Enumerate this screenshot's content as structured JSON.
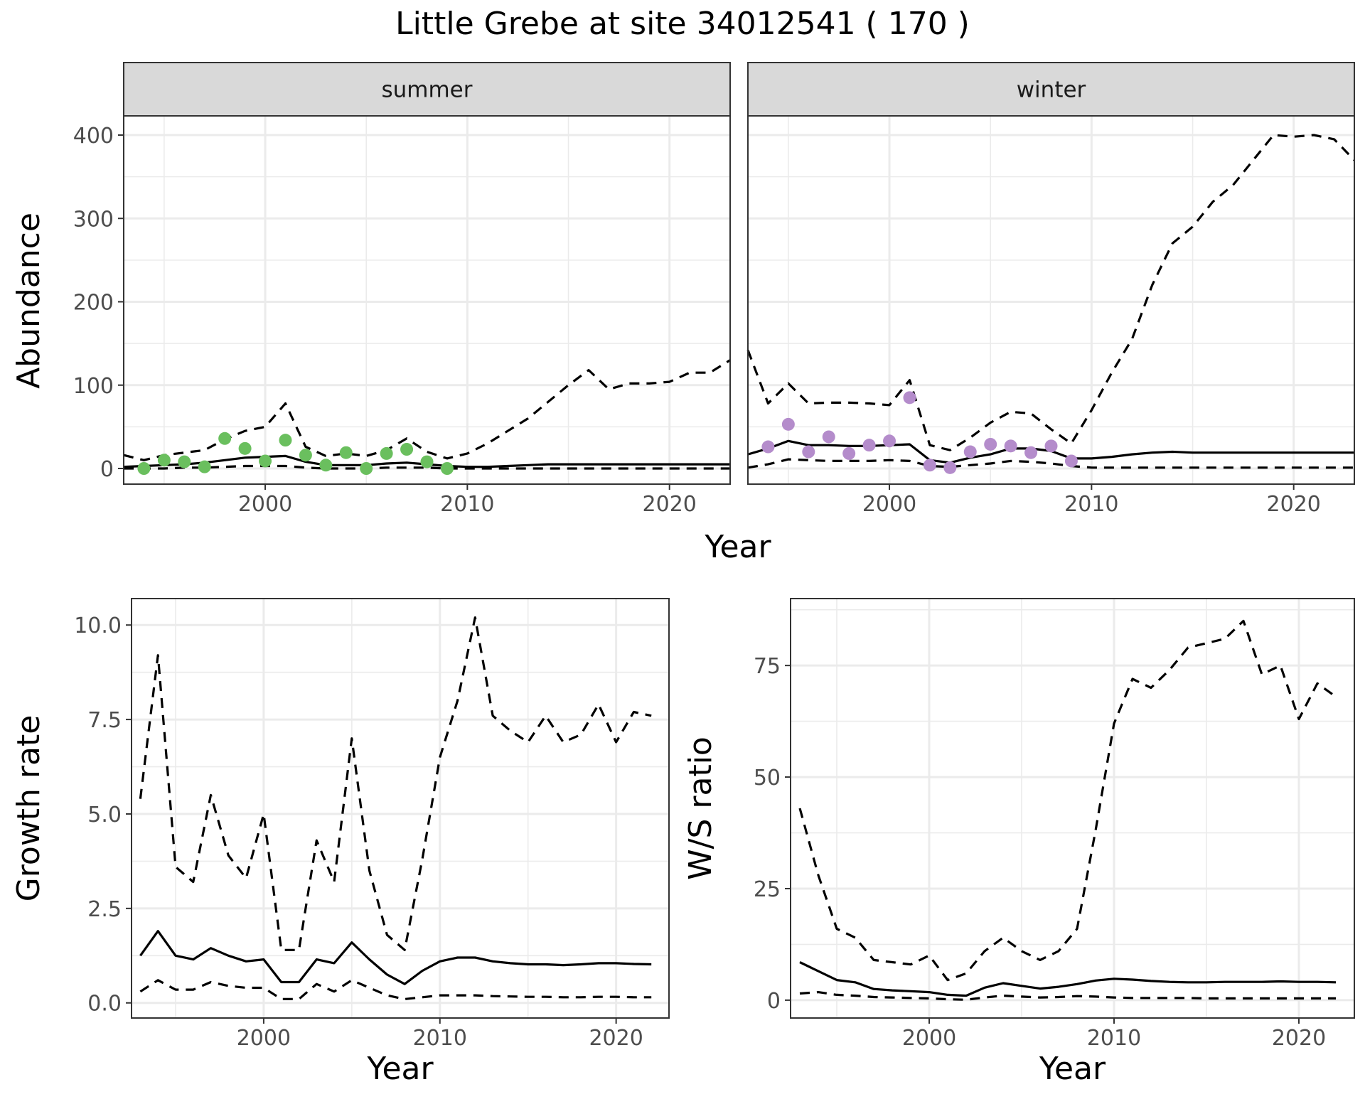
{
  "title": "Little Grebe at site 34012541 ( 170 )",
  "colors": {
    "summer_points": "#6ABF5E",
    "winter_points": "#B48CCB",
    "strip_fill": "#D9D9D9",
    "grid": "#EBEBEB",
    "frame": "#333333",
    "line": "#000000"
  },
  "chart_data": [
    {
      "type": "line",
      "panel": "summer",
      "strip_label": "summer",
      "xlabel": "Year",
      "ylabel": "Abundance",
      "xlim": [
        1993,
        2023
      ],
      "ylim": [
        0,
        400
      ],
      "x_ticks": [
        2000,
        2010,
        2020
      ],
      "y_ticks": [
        0,
        100,
        200,
        300,
        400
      ],
      "grid": true,
      "series": [
        {
          "role": "estimate",
          "style": "solid",
          "x": [
            1993,
            1994,
            1995,
            1996,
            1997,
            1998,
            1999,
            2000,
            2001,
            2002,
            2003,
            2004,
            2005,
            2006,
            2007,
            2008,
            2009,
            2010,
            2011,
            2012,
            2013,
            2014,
            2015,
            2016,
            2017,
            2018,
            2019,
            2020,
            2021,
            2022,
            2023
          ],
          "y": [
            2,
            3,
            4,
            5,
            7,
            10,
            13,
            14,
            15,
            8,
            4,
            4,
            4,
            6,
            7,
            5,
            3,
            2,
            2,
            3,
            4,
            5,
            5,
            5,
            5,
            5,
            5,
            5,
            5,
            5,
            5
          ]
        },
        {
          "role": "upper",
          "style": "dashed",
          "x": [
            1993,
            1994,
            1995,
            1996,
            1997,
            1998,
            1999,
            2000,
            2001,
            2002,
            2003,
            2004,
            2005,
            2006,
            2007,
            2008,
            2009,
            2010,
            2011,
            2012,
            2013,
            2014,
            2015,
            2016,
            2017,
            2018,
            2019,
            2020,
            2021,
            2022,
            2023
          ],
          "y": [
            16,
            10,
            16,
            19,
            22,
            35,
            45,
            50,
            78,
            26,
            15,
            18,
            15,
            22,
            36,
            20,
            12,
            18,
            30,
            45,
            60,
            80,
            100,
            118,
            95,
            102,
            102,
            104,
            115,
            115,
            130
          ]
        },
        {
          "role": "lower",
          "style": "dashed",
          "x": [
            1993,
            1994,
            1995,
            1996,
            1997,
            1998,
            1999,
            2000,
            2001,
            2002,
            2003,
            2004,
            2005,
            2006,
            2007,
            2008,
            2009,
            2010,
            2011,
            2012,
            2013,
            2014,
            2015,
            2016,
            2017,
            2018,
            2019,
            2020,
            2021,
            2022,
            2023
          ],
          "y": [
            0,
            0,
            0,
            1,
            1,
            2,
            3,
            3,
            3,
            1,
            0,
            0,
            0,
            1,
            1,
            1,
            0,
            0,
            0,
            0,
            0,
            0,
            0,
            0,
            0,
            0,
            0,
            0,
            0,
            0,
            0
          ]
        }
      ],
      "points": {
        "x": [
          1994,
          1995,
          1996,
          1997,
          1998,
          1999,
          2000,
          2001,
          2002,
          2003,
          2004,
          2005,
          2006,
          2007,
          2008,
          2009
        ],
        "y": [
          0,
          10,
          8,
          2,
          36,
          24,
          9,
          34,
          16,
          4,
          19,
          0,
          18,
          23,
          8,
          0
        ]
      }
    },
    {
      "type": "line",
      "panel": "winter",
      "strip_label": "winter",
      "xlabel": "Year",
      "ylabel": "",
      "xlim": [
        1993,
        2023
      ],
      "ylim": [
        0,
        400
      ],
      "x_ticks": [
        2000,
        2010,
        2020
      ],
      "y_ticks": [
        0,
        100,
        200,
        300,
        400
      ],
      "grid": true,
      "series": [
        {
          "role": "estimate",
          "style": "solid",
          "x": [
            1993,
            1994,
            1995,
            1996,
            1997,
            1998,
            1999,
            2000,
            2001,
            2002,
            2003,
            2004,
            2005,
            2006,
            2007,
            2008,
            2009,
            2010,
            2011,
            2012,
            2013,
            2014,
            2015,
            2016,
            2017,
            2018,
            2019,
            2020,
            2021,
            2022,
            2023
          ],
          "y": [
            17,
            24,
            33,
            28,
            28,
            27,
            27,
            28,
            29,
            10,
            7,
            13,
            17,
            24,
            24,
            21,
            12,
            12,
            14,
            17,
            19,
            20,
            19,
            19,
            19,
            19,
            19,
            19,
            19,
            19,
            19
          ]
        },
        {
          "role": "upper",
          "style": "dashed",
          "x": [
            1993,
            1994,
            1995,
            1996,
            1997,
            1998,
            1999,
            2000,
            2001,
            2002,
            2003,
            2004,
            2005,
            2006,
            2007,
            2008,
            2009,
            2010,
            2011,
            2012,
            2013,
            2014,
            2015,
            2016,
            2017,
            2018,
            2019,
            2020,
            2021,
            2022,
            2023
          ],
          "y": [
            142,
            78,
            102,
            78,
            79,
            79,
            78,
            76,
            106,
            28,
            22,
            37,
            55,
            68,
            66,
            47,
            30,
            70,
            115,
            155,
            220,
            270,
            290,
            320,
            340,
            370,
            400,
            398,
            400,
            395,
            370
          ]
        },
        {
          "role": "lower",
          "style": "dashed",
          "x": [
            1993,
            1994,
            1995,
            1996,
            1997,
            1998,
            1999,
            2000,
            2001,
            2002,
            2003,
            2004,
            2005,
            2006,
            2007,
            2008,
            2009,
            2010,
            2011,
            2012,
            2013,
            2014,
            2015,
            2016,
            2017,
            2018,
            2019,
            2020,
            2021,
            2022,
            2023
          ],
          "y": [
            1,
            5,
            11,
            10,
            9,
            9,
            9,
            10,
            9,
            3,
            2,
            4,
            6,
            9,
            8,
            6,
            3,
            1,
            1,
            1,
            1,
            1,
            1,
            1,
            1,
            1,
            1,
            1,
            1,
            1,
            1
          ]
        }
      ],
      "points": {
        "x": [
          1994,
          1995,
          1996,
          1997,
          1998,
          1999,
          2000,
          2001,
          2002,
          2003,
          2004,
          2005,
          2006,
          2007,
          2008,
          2009
        ],
        "y": [
          26,
          53,
          20,
          38,
          18,
          28,
          33,
          85,
          4,
          1,
          20,
          29,
          27,
          19,
          27,
          9
        ]
      }
    },
    {
      "type": "line",
      "panel": "growth",
      "xlabel": "Year",
      "ylabel": "Growth rate",
      "xlim": [
        1992.5,
        2023
      ],
      "ylim": [
        -0.4,
        10.7
      ],
      "x_ticks": [
        2000,
        2010,
        2020
      ],
      "y_ticks": [
        0.0,
        2.5,
        5.0,
        7.5,
        10.0
      ],
      "y_tick_labels": [
        "0.0",
        "2.5",
        "5.0",
        "7.5",
        "10.0"
      ],
      "grid": true,
      "series": [
        {
          "role": "estimate",
          "style": "solid",
          "x": [
            1993,
            1994,
            1995,
            1996,
            1997,
            1998,
            1999,
            2000,
            2001,
            2002,
            2003,
            2004,
            2005,
            2006,
            2007,
            2008,
            2009,
            2010,
            2011,
            2012,
            2013,
            2014,
            2015,
            2016,
            2017,
            2018,
            2019,
            2020,
            2021,
            2022
          ],
          "y": [
            1.25,
            1.9,
            1.25,
            1.15,
            1.45,
            1.25,
            1.1,
            1.15,
            0.55,
            0.55,
            1.15,
            1.05,
            1.6,
            1.15,
            0.75,
            0.5,
            0.85,
            1.1,
            1.2,
            1.2,
            1.1,
            1.05,
            1.02,
            1.02,
            1.0,
            1.02,
            1.05,
            1.05,
            1.03,
            1.02
          ]
        },
        {
          "role": "upper",
          "style": "dashed",
          "x": [
            1993,
            1994,
            1995,
            1996,
            1997,
            1998,
            1999,
            2000,
            2001,
            2002,
            2003,
            2004,
            2005,
            2006,
            2007,
            2008,
            2009,
            2010,
            2011,
            2012,
            2013,
            2014,
            2015,
            2016,
            2017,
            2018,
            2019,
            2020,
            2021,
            2022
          ],
          "y": [
            5.4,
            9.2,
            3.6,
            3.2,
            5.5,
            3.9,
            3.3,
            5.0,
            1.4,
            1.4,
            4.3,
            3.2,
            7.0,
            3.5,
            1.8,
            1.4,
            3.8,
            6.5,
            8.0,
            10.2,
            7.6,
            7.2,
            6.9,
            7.6,
            6.9,
            7.1,
            7.9,
            6.9,
            7.7,
            7.6
          ]
        },
        {
          "role": "lower",
          "style": "dashed",
          "x": [
            1993,
            1994,
            1995,
            1996,
            1997,
            1998,
            1999,
            2000,
            2001,
            2002,
            2003,
            2004,
            2005,
            2006,
            2007,
            2008,
            2009,
            2010,
            2011,
            2012,
            2013,
            2014,
            2015,
            2016,
            2017,
            2018,
            2019,
            2020,
            2021,
            2022
          ],
          "y": [
            0.3,
            0.6,
            0.35,
            0.35,
            0.55,
            0.45,
            0.4,
            0.4,
            0.1,
            0.1,
            0.5,
            0.3,
            0.6,
            0.4,
            0.2,
            0.1,
            0.15,
            0.2,
            0.2,
            0.2,
            0.18,
            0.17,
            0.16,
            0.16,
            0.15,
            0.15,
            0.16,
            0.16,
            0.15,
            0.15
          ]
        }
      ]
    },
    {
      "type": "line",
      "panel": "ratio",
      "xlabel": "Year",
      "ylabel": "W/S ratio",
      "xlim": [
        1992.5,
        2023
      ],
      "ylim": [
        -4,
        90
      ],
      "x_ticks": [
        2000,
        2010,
        2020
      ],
      "y_ticks": [
        0,
        25,
        50,
        75
      ],
      "grid": true,
      "series": [
        {
          "role": "estimate",
          "style": "solid",
          "x": [
            1993,
            1994,
            1995,
            1996,
            1997,
            1998,
            1999,
            2000,
            2001,
            2002,
            2003,
            2004,
            2005,
            2006,
            2007,
            2008,
            2009,
            2010,
            2011,
            2012,
            2013,
            2014,
            2015,
            2016,
            2017,
            2018,
            2019,
            2020,
            2021,
            2022
          ],
          "y": [
            8.5,
            6.5,
            4.5,
            4.0,
            2.5,
            2.2,
            2.0,
            1.8,
            1.2,
            1.0,
            2.8,
            3.8,
            3.2,
            2.6,
            3.0,
            3.6,
            4.4,
            4.8,
            4.6,
            4.3,
            4.1,
            4.0,
            4.0,
            4.1,
            4.1,
            4.1,
            4.2,
            4.1,
            4.1,
            4.0
          ]
        },
        {
          "role": "upper",
          "style": "dashed",
          "x": [
            1993,
            1994,
            1995,
            1996,
            1997,
            1998,
            1999,
            2000,
            2001,
            2002,
            2003,
            2004,
            2005,
            2006,
            2007,
            2008,
            2009,
            2010,
            2011,
            2012,
            2013,
            2014,
            2015,
            2016,
            2017,
            2018,
            2019,
            2020,
            2021,
            2022
          ],
          "y": [
            43,
            28,
            16,
            14,
            9,
            8.5,
            8,
            10,
            4.5,
            6,
            11,
            14,
            11,
            9,
            11,
            16,
            38,
            62,
            72,
            70,
            74,
            79,
            80,
            81,
            85,
            73,
            75,
            63,
            71,
            68
          ]
        },
        {
          "role": "lower",
          "style": "dashed",
          "x": [
            1993,
            1994,
            1995,
            1996,
            1997,
            1998,
            1999,
            2000,
            2001,
            2002,
            2003,
            2004,
            2005,
            2006,
            2007,
            2008,
            2009,
            2010,
            2011,
            2012,
            2013,
            2014,
            2015,
            2016,
            2017,
            2018,
            2019,
            2020,
            2021,
            2022
          ],
          "y": [
            1.5,
            1.8,
            1.2,
            1.0,
            0.7,
            0.6,
            0.5,
            0.4,
            0.2,
            0.1,
            0.6,
            1.0,
            0.8,
            0.6,
            0.7,
            0.9,
            0.8,
            0.6,
            0.5,
            0.5,
            0.5,
            0.5,
            0.4,
            0.4,
            0.4,
            0.4,
            0.4,
            0.4,
            0.4,
            0.4
          ]
        }
      ]
    }
  ],
  "shared_labels": {
    "top_xlabel": "Year",
    "top_ylabel": "Abundance"
  }
}
